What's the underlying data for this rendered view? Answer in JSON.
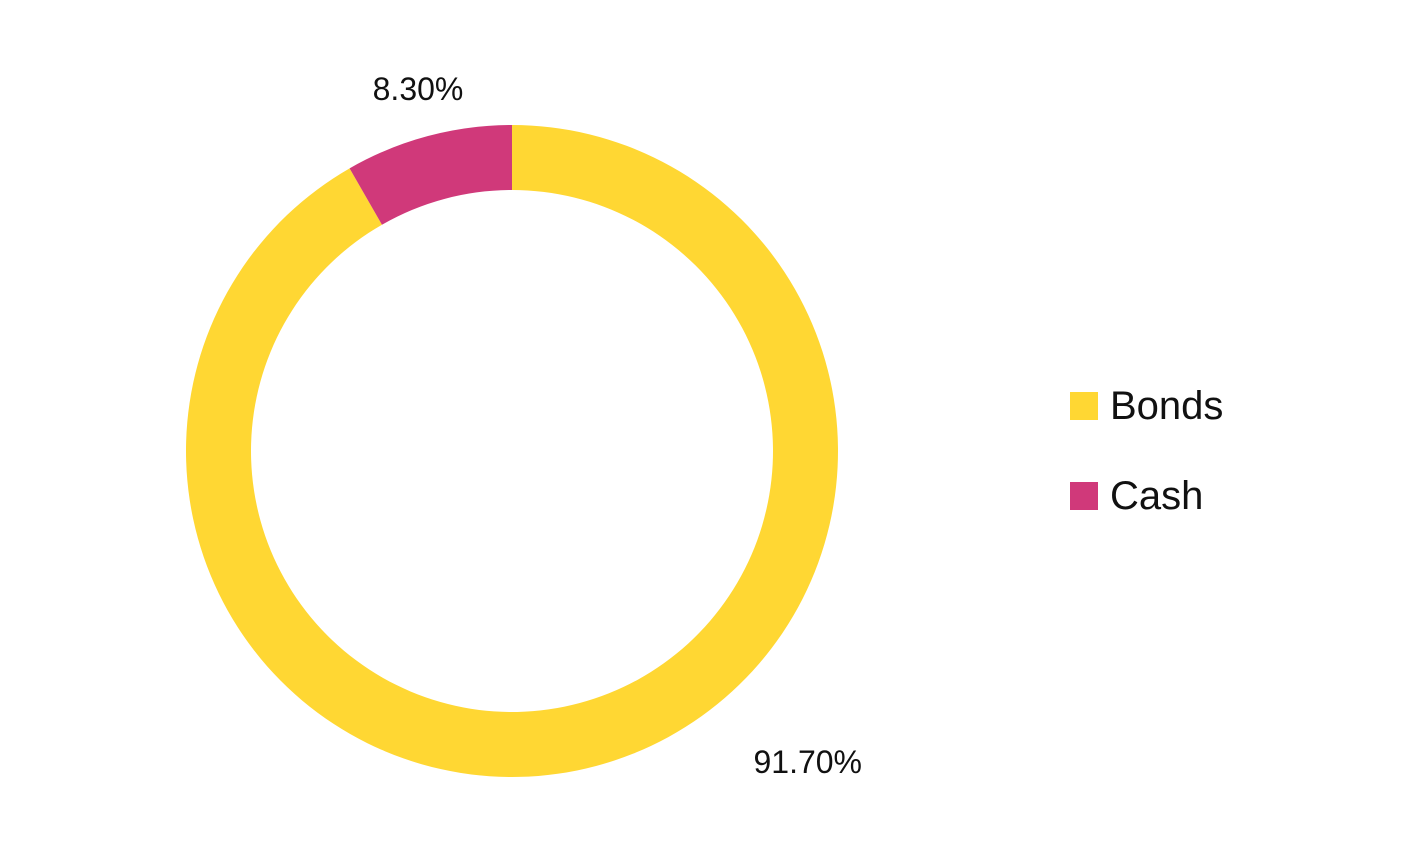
{
  "chart_data": {
    "type": "pie",
    "variant": "donut",
    "categories": [
      "Bonds",
      "Cash"
    ],
    "values": [
      91.7,
      8.3
    ],
    "value_labels": [
      "91.70%",
      "8.30%"
    ],
    "colors": [
      "#FFD733",
      "#D0397A"
    ],
    "legend": {
      "placement": "right",
      "items": [
        {
          "label": "Bonds",
          "color": "#FFD733"
        },
        {
          "label": "Cash",
          "color": "#D0397A"
        }
      ]
    }
  }
}
